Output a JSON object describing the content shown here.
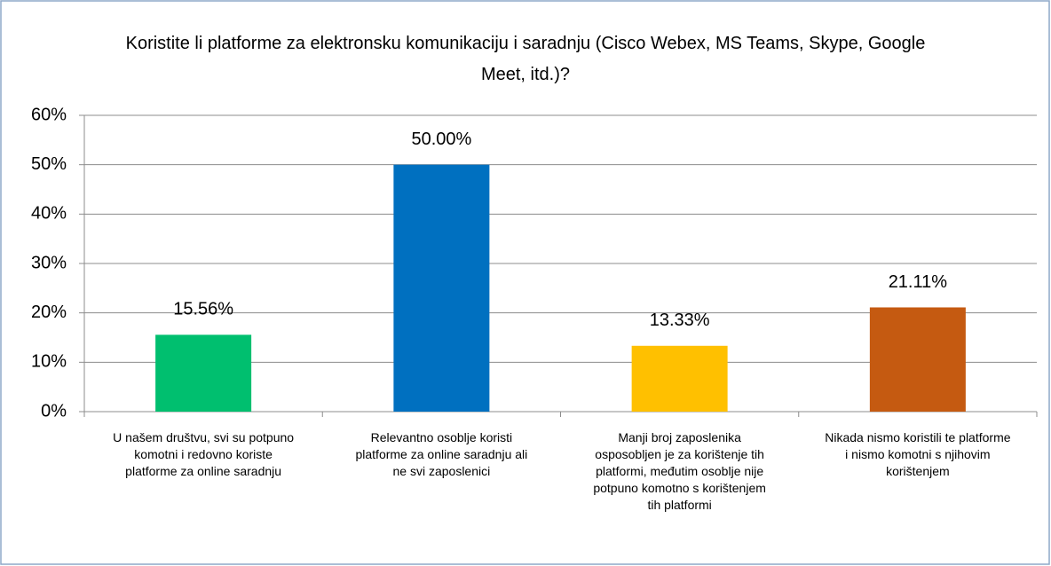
{
  "chart_data": {
    "type": "bar",
    "title": "Koristite li platforme za elektronsku komunikaciju i saradnju (Cisco Webex, MS Teams, Skype, Google Meet, itd.)?",
    "categories": [
      "U našem društvu, svi su potpuno komotni i redovno koriste platforme za online saradnju",
      "Relevantno osoblje koristi platforme za online saradnju ali ne svi zaposlenici",
      "Manji broj zaposlenika osposobljen je za korištenje tih platformi, međutim osoblje nije potpuno komotno s korištenjem tih platformi",
      "Nikada nismo koristili te platforme  i nismo komotni s njihovim korištenjem"
    ],
    "values": [
      15.56,
      50.0,
      13.33,
      21.11
    ],
    "value_labels": [
      "15.56%",
      "50.00%",
      "13.33%",
      "21.11%"
    ],
    "colors": [
      "#00bf6f",
      "#0070c0",
      "#ffc000",
      "#c55a11"
    ],
    "ylim": [
      0,
      60
    ],
    "yticks": [
      {
        "value": 0,
        "label": "0%"
      },
      {
        "value": 10,
        "label": "10%"
      },
      {
        "value": 20,
        "label": "20%"
      },
      {
        "value": 30,
        "label": "30%"
      },
      {
        "value": 40,
        "label": "40%"
      },
      {
        "value": 50,
        "label": "50%"
      },
      {
        "value": 60,
        "label": "60%"
      }
    ],
    "grid": true
  }
}
